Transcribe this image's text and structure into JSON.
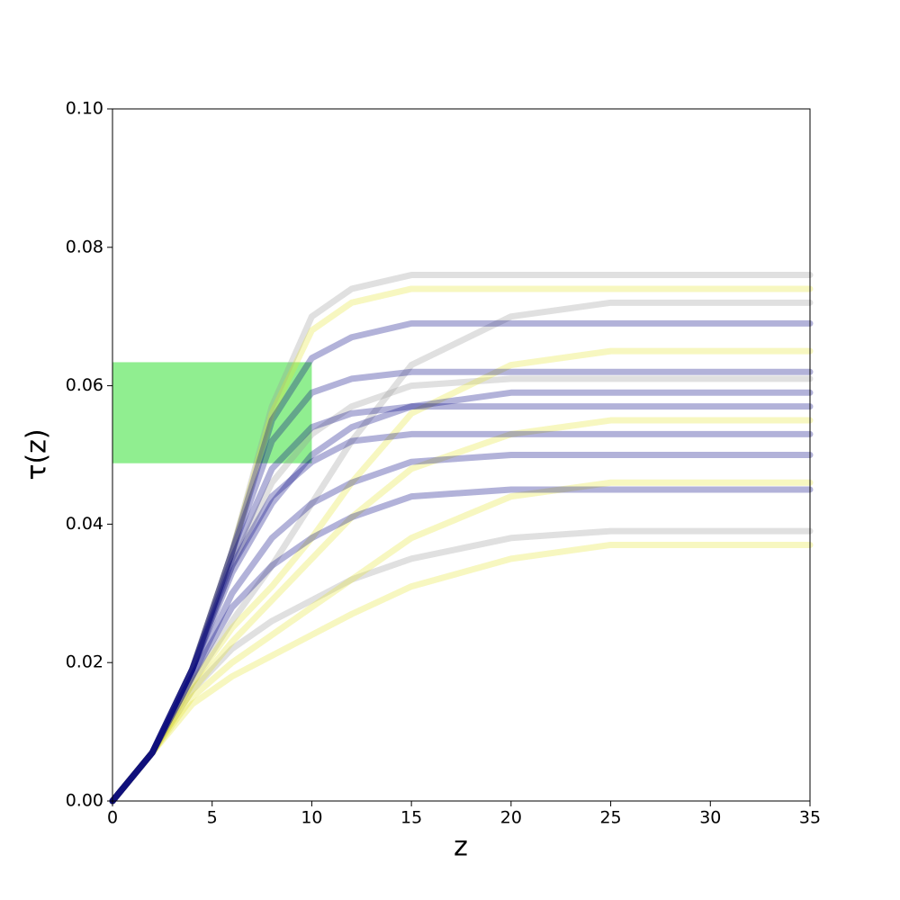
{
  "chart_data": {
    "type": "line",
    "xlabel": "z",
    "ylabel": "τ(z)",
    "xlim": [
      0,
      35
    ],
    "xticks": [
      0,
      5,
      10,
      15,
      20,
      25,
      30,
      35
    ],
    "ylim": [
      0,
      0.1
    ],
    "yticks": [
      {
        "value": 0,
        "label": "0.00"
      },
      {
        "value": 0.02,
        "label": "0.02"
      },
      {
        "value": 0.04,
        "label": "0.04"
      },
      {
        "value": 0.06,
        "label": "0.06"
      },
      {
        "value": 0.08,
        "label": "0.08"
      },
      {
        "value": 0.1,
        "label": "0.10"
      }
    ],
    "band": {
      "xlim": [
        0,
        10
      ],
      "ylim": [
        0.0488,
        0.0634
      ],
      "color": "#90ee90"
    },
    "x": [
      0,
      2,
      4,
      6,
      8,
      10,
      12,
      15,
      20,
      25,
      35
    ],
    "series": [
      {
        "color": "#999999",
        "values": [
          0,
          0.007,
          0.019,
          0.036,
          0.057,
          0.07,
          0.074,
          0.076,
          0.076,
          0.076,
          0.076
        ]
      },
      {
        "color": "#999999",
        "values": [
          0,
          0.007,
          0.016,
          0.022,
          0.026,
          0.029,
          0.032,
          0.035,
          0.038,
          0.039,
          0.039
        ]
      },
      {
        "color": "#999999",
        "values": [
          0,
          0.007,
          0.017,
          0.026,
          0.034,
          0.043,
          0.052,
          0.063,
          0.07,
          0.072,
          0.072
        ]
      },
      {
        "color": "#999999",
        "values": [
          0,
          0.007,
          0.019,
          0.034,
          0.046,
          0.053,
          0.057,
          0.06,
          0.061,
          0.061,
          0.061
        ]
      },
      {
        "color": "#e6e62e",
        "values": [
          0,
          0.007,
          0.017,
          0.025,
          0.031,
          0.038,
          0.046,
          0.056,
          0.063,
          0.065,
          0.065
        ]
      },
      {
        "color": "#e6e62e",
        "values": [
          0,
          0.007,
          0.015,
          0.02,
          0.024,
          0.028,
          0.032,
          0.038,
          0.044,
          0.046,
          0.046
        ]
      },
      {
        "color": "#e6e62e",
        "values": [
          0,
          0.007,
          0.014,
          0.018,
          0.021,
          0.024,
          0.027,
          0.031,
          0.035,
          0.037,
          0.037
        ]
      },
      {
        "color": "#e6e62e",
        "values": [
          0,
          0.007,
          0.019,
          0.036,
          0.056,
          0.068,
          0.072,
          0.074,
          0.074,
          0.074,
          0.074
        ]
      },
      {
        "color": "#e6e62e",
        "values": [
          0,
          0.007,
          0.016,
          0.023,
          0.029,
          0.035,
          0.041,
          0.048,
          0.053,
          0.055,
          0.055
        ]
      },
      {
        "color": "#000080",
        "values": [
          0,
          0.007,
          0.019,
          0.036,
          0.052,
          0.059,
          0.061,
          0.062,
          0.062,
          0.062,
          0.062
        ]
      },
      {
        "color": "#000080",
        "values": [
          0,
          0.007,
          0.019,
          0.035,
          0.048,
          0.054,
          0.056,
          0.057,
          0.057,
          0.057,
          0.057
        ]
      },
      {
        "color": "#000080",
        "values": [
          0,
          0.007,
          0.019,
          0.034,
          0.044,
          0.049,
          0.052,
          0.053,
          0.053,
          0.053,
          0.053
        ]
      },
      {
        "color": "#000080",
        "values": [
          0,
          0.007,
          0.019,
          0.036,
          0.055,
          0.064,
          0.067,
          0.069,
          0.069,
          0.069,
          0.069
        ]
      },
      {
        "color": "#000080",
        "values": [
          0,
          0.007,
          0.019,
          0.033,
          0.043,
          0.05,
          0.054,
          0.057,
          0.059,
          0.059,
          0.059
        ]
      },
      {
        "color": "#000080",
        "values": [
          0,
          0.007,
          0.018,
          0.03,
          0.038,
          0.043,
          0.046,
          0.049,
          0.05,
          0.05,
          0.05
        ]
      },
      {
        "color": "#000080",
        "values": [
          0,
          0.007,
          0.018,
          0.028,
          0.034,
          0.038,
          0.041,
          0.044,
          0.045,
          0.045,
          0.045
        ]
      }
    ]
  }
}
